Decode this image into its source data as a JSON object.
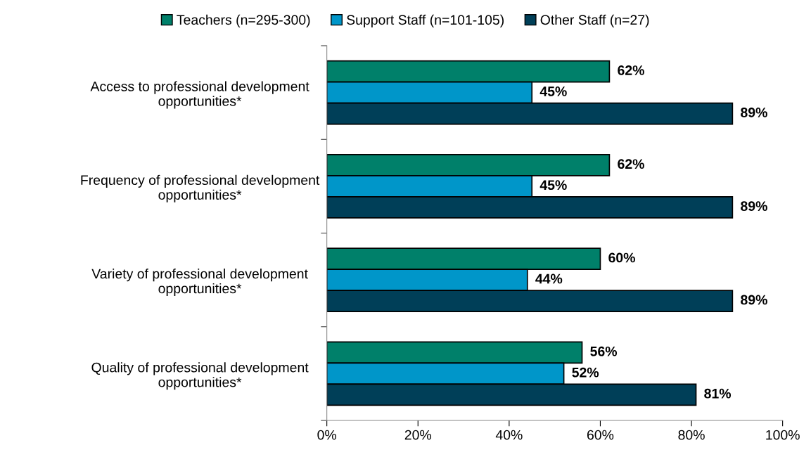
{
  "chart_data": {
    "type": "bar",
    "orientation": "horizontal",
    "categories": [
      "Access to professional development\nopportunities*",
      "Frequency of professional development\nopportunities*",
      "Variety of professional development\nopportunities*",
      "Quality of professional development\nopportunities*"
    ],
    "series": [
      {
        "name": "Teachers (n=295-300)",
        "color": "#00806a",
        "values": [
          62,
          62,
          60,
          56
        ],
        "value_labels": [
          "62%",
          "62%",
          "60%",
          "56%"
        ]
      },
      {
        "name": "Support Staff (n=101-105)",
        "color": "#0096c9",
        "values": [
          45,
          45,
          44,
          52
        ],
        "value_labels": [
          "45%",
          "45%",
          "44%",
          "52%"
        ]
      },
      {
        "name": "Other Staff (n=27)",
        "color": "#003f58",
        "values": [
          89,
          89,
          89,
          81
        ],
        "value_labels": [
          "89%",
          "89%",
          "89%",
          "81%"
        ]
      }
    ],
    "xlim": [
      0,
      100
    ],
    "xticks": [
      {
        "value": 0,
        "label": "0%"
      },
      {
        "value": 20,
        "label": "20%"
      },
      {
        "value": 40,
        "label": "40%"
      },
      {
        "value": 60,
        "label": "60%"
      },
      {
        "value": 80,
        "label": "80%"
      },
      {
        "value": 100,
        "label": "100%"
      }
    ],
    "grid": false,
    "legend": "top"
  }
}
